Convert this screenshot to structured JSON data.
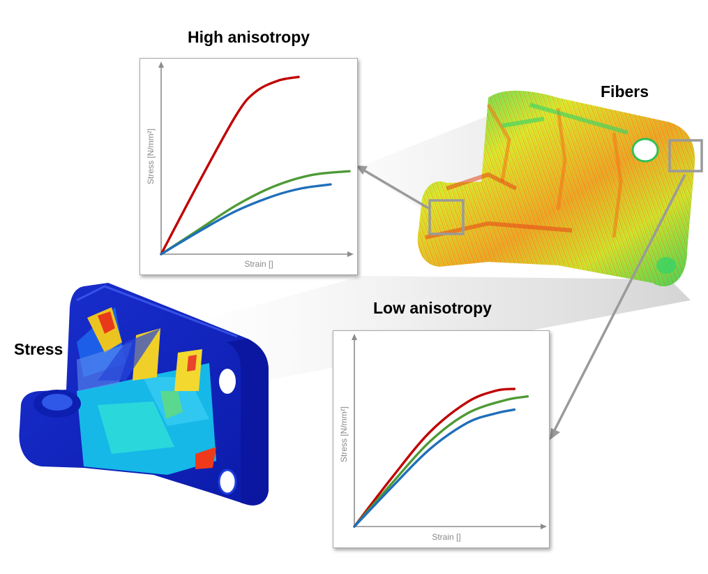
{
  "labels": {
    "high_title": "High anisotropy",
    "low_title": "Low anisotropy",
    "fibers": "Fibers",
    "stress": "Stress"
  },
  "chart_data": [
    {
      "type": "line",
      "title": "High anisotropy",
      "xlabel": "Strain []",
      "ylabel": "Stress [N/mm²]",
      "xlim": [
        0,
        1
      ],
      "ylim": [
        0,
        1
      ],
      "series": [
        {
          "color": "#c00000",
          "x": [
            0,
            0.2,
            0.4,
            0.5,
            0.62,
            0.73
          ],
          "y": [
            0,
            0.38,
            0.74,
            0.86,
            0.92,
            0.94
          ]
        },
        {
          "color": "#4e9a35",
          "x": [
            0,
            0.2,
            0.4,
            0.6,
            0.8,
            1.0
          ],
          "y": [
            0,
            0.13,
            0.26,
            0.36,
            0.42,
            0.44
          ]
        },
        {
          "color": "#1f6fb8",
          "x": [
            0,
            0.2,
            0.4,
            0.6,
            0.75,
            0.9
          ],
          "y": [
            0,
            0.12,
            0.23,
            0.31,
            0.35,
            0.37
          ]
        }
      ]
    },
    {
      "type": "line",
      "title": "Low anisotropy",
      "xlabel": "Strain []",
      "ylabel": "Stress [N/mm²]",
      "xlim": [
        0,
        1
      ],
      "ylim": [
        0,
        1
      ],
      "series": [
        {
          "color": "#c00000",
          "x": [
            0,
            0.2,
            0.4,
            0.6,
            0.75,
            0.85
          ],
          "y": [
            0,
            0.26,
            0.5,
            0.66,
            0.72,
            0.73
          ]
        },
        {
          "color": "#4e9a35",
          "x": [
            0,
            0.2,
            0.4,
            0.6,
            0.8,
            0.92
          ],
          "y": [
            0,
            0.23,
            0.45,
            0.6,
            0.67,
            0.69
          ]
        },
        {
          "color": "#1f6fb8",
          "x": [
            0,
            0.2,
            0.4,
            0.6,
            0.75,
            0.85
          ],
          "y": [
            0,
            0.21,
            0.41,
            0.55,
            0.6,
            0.62
          ]
        }
      ]
    }
  ]
}
